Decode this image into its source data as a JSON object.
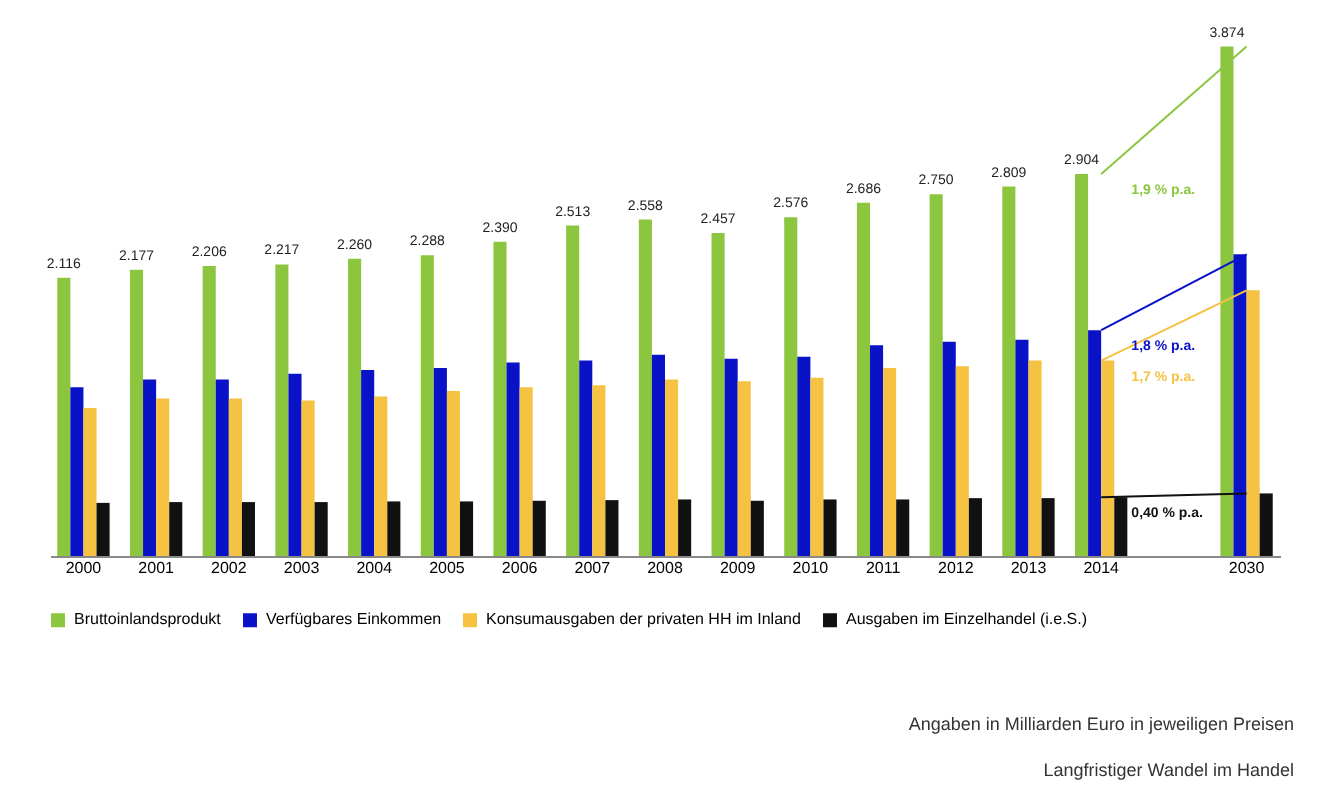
{
  "chart_data": {
    "type": "bar",
    "categories": [
      "2000",
      "2001",
      "2002",
      "2003",
      "2004",
      "2005",
      "2006",
      "2007",
      "2008",
      "2009",
      "2010",
      "2011",
      "2012",
      "2013",
      "2014",
      null,
      "2030"
    ],
    "series": [
      {
        "name": "Bruttoinlandsprodukt",
        "color": "#8cc63e",
        "values": [
          2116,
          2177,
          2206,
          2217,
          2260,
          2288,
          2390,
          2513,
          2558,
          2457,
          2576,
          2686,
          2750,
          2809,
          2904,
          null,
          3874
        ],
        "value_labels": [
          "2.116",
          "2.177",
          "2.206",
          "2.217",
          "2.260",
          "2.288",
          "2.390",
          "2.513",
          "2.558",
          "2.457",
          "2.576",
          "2.686",
          "2.750",
          "2.809",
          "2.904",
          null,
          "3.874"
        ]
      },
      {
        "name": "Verfügbares Einkommen",
        "color": "#0a12c8",
        "values": [
          1284,
          1342,
          1342,
          1385,
          1414,
          1429,
          1472,
          1486,
          1530,
          1500,
          1515,
          1602,
          1630,
          1645,
          1717,
          null,
          2294
        ]
      },
      {
        "name": "Konsumausgaben der privaten HH im Inland",
        "color": "#f5c242",
        "values": [
          1125,
          1198,
          1198,
          1183,
          1212,
          1255,
          1284,
          1299,
          1342,
          1328,
          1356,
          1429,
          1443,
          1486,
          1486,
          null,
          2020
        ]
      },
      {
        "name": "Ausgaben im Einzelhandel (i.e.S.)",
        "color": "#111111",
        "values": [
          404,
          410,
          410,
          410,
          415,
          415,
          420,
          425,
          430,
          420,
          430,
          430,
          440,
          440,
          447,
          null,
          476
        ]
      }
    ],
    "annotations": [
      "1,9 % p.a.",
      "1,8 % p.a.",
      "1,7 % p.a.",
      "0,40 % p.a.",
      "Angaben in Milliarden Euro in jeweiligen Preisen",
      "Langfristiger Wandel im Handel"
    ],
    "legend": "bottom",
    "grid": false
  }
}
